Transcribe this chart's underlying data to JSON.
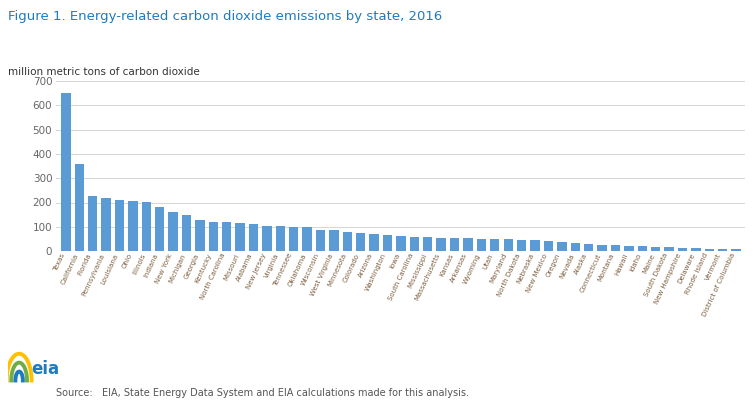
{
  "title": "Figure 1. Energy-related carbon dioxide emissions by state, 2016",
  "ylabel": "million metric tons of carbon dioxide",
  "source": "Source:   EIA, State Energy Data System and EIA calculations made for this analysis.",
  "title_color": "#1f7bbf",
  "bar_color": "#5b9bd5",
  "background_color": "#ffffff",
  "ylim": [
    0,
    700
  ],
  "yticks": [
    0,
    100,
    200,
    300,
    400,
    500,
    600,
    700
  ],
  "states": [
    "Texas",
    "California",
    "Florida",
    "Pennsylvania",
    "Louisiana",
    "Ohio",
    "Illinois",
    "Indiana",
    "New York",
    "Michigan",
    "Georgia",
    "Kentucky",
    "North Carolina",
    "Missouri",
    "Alabama",
    "New Jersey",
    "Virginia",
    "Tennessee",
    "Oklahoma",
    "Wisconsin",
    "West Virginia",
    "Minnesota",
    "Colorado",
    "Arizona",
    "Washington",
    "Iowa",
    "South Carolina",
    "Mississippi",
    "Massachusetts",
    "Kansas",
    "Arkansas",
    "Wyoming",
    "Utah",
    "Maryland",
    "North Dakota",
    "Nebraska",
    "New Mexico",
    "Oregon",
    "Nevada",
    "Alaska",
    "Connecticut",
    "Montana",
    "Hawaii",
    "Idaho",
    "Maine",
    "South Dakota",
    "New Hampshire",
    "Delaware",
    "Rhode Island",
    "Vermont",
    "District of Columbia"
  ],
  "values": [
    649,
    358,
    228,
    220,
    210,
    205,
    201,
    180,
    161,
    149,
    129,
    120,
    118,
    115,
    110,
    103,
    102,
    100,
    98,
    87,
    85,
    77,
    74,
    70,
    68,
    63,
    60,
    58,
    55,
    54,
    52,
    51,
    48,
    48,
    47,
    44,
    42,
    36,
    32,
    30,
    26,
    25,
    22,
    20,
    17,
    15,
    14,
    13,
    10,
    9,
    7
  ]
}
